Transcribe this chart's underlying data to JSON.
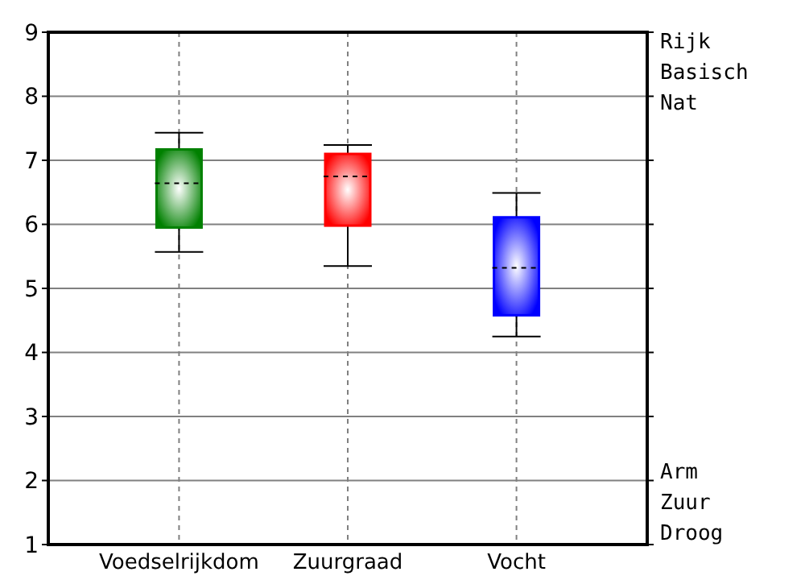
{
  "chart_data": {
    "type": "box",
    "categories": [
      "Voedselrijkdom",
      "Zuurgraad",
      "Vocht"
    ],
    "colors": [
      "#008000",
      "#ff0000",
      "#0000ff"
    ],
    "boxes": [
      {
        "low": 5.57,
        "q1": 5.95,
        "median": 6.64,
        "q3": 7.17,
        "high": 7.43
      },
      {
        "low": 5.35,
        "q1": 5.98,
        "median": 6.75,
        "q3": 7.1,
        "high": 7.24
      },
      {
        "low": 4.25,
        "q1": 4.58,
        "median": 5.32,
        "q3": 6.11,
        "high": 6.49
      }
    ],
    "ylim": [
      1,
      9
    ],
    "yticks": [
      1,
      2,
      3,
      4,
      5,
      6,
      7,
      8,
      9
    ],
    "grid": true,
    "annotations": [
      "Rijk",
      "Basisch",
      "Nat",
      "Arm",
      "Zuur",
      "Droog"
    ]
  }
}
